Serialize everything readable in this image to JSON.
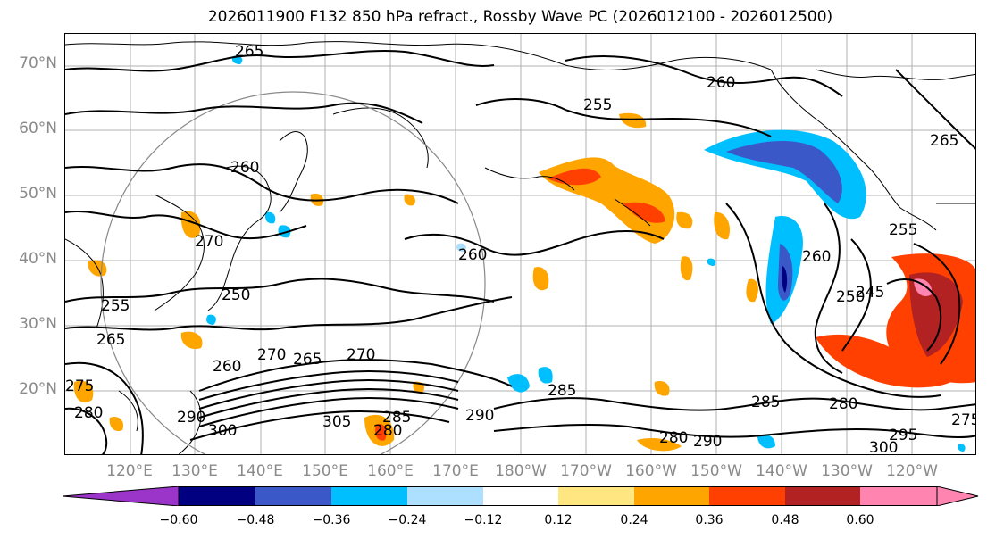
{
  "title": "2026011900 F132 850 hPa refract., Rossby Wave PC (2026012100 - 2026012500)",
  "lat_labels": [
    "70°N",
    "60°N",
    "50°N",
    "40°N",
    "30°N",
    "20°N"
  ],
  "lon_labels": [
    "120°E",
    "130°E",
    "140°E",
    "150°E",
    "160°E",
    "170°E",
    "180°W",
    "170°W",
    "160°W",
    "150°W",
    "140°W",
    "130°W",
    "120°W"
  ],
  "contour_labels": [
    "265",
    "260",
    "255",
    "265",
    "260",
    "255",
    "250",
    "245",
    "250",
    "255",
    "270",
    "265",
    "270",
    "260",
    "270",
    "265",
    "260",
    "275",
    "280",
    "290",
    "300",
    "305",
    "285",
    "280",
    "285",
    "290",
    "285",
    "280",
    "295",
    "300",
    "280",
    "290",
    "275",
    "260"
  ],
  "colorbar": {
    "ticks": [
      "−0.60",
      "−0.48",
      "−0.36",
      "−0.24",
      "−0.12",
      "0.12",
      "0.24",
      "0.36",
      "0.48",
      "0.60"
    ],
    "colors": [
      "#9b34c9",
      "#000080",
      "#3a58c8",
      "#00bfff",
      "#ade0ff",
      "#ffffff",
      "#ffe680",
      "#ffa500",
      "#ff4000",
      "#b22222",
      "#ff85b0"
    ]
  },
  "shading_colors": {
    "neg_deep": "#000080",
    "neg_strong": "#3a58c8",
    "neg_mid": "#00bfff",
    "neg_light": "#ade0ff",
    "pos_light": "#ffe680",
    "pos_mid": "#ffa500",
    "pos_strong": "#ff4000",
    "pos_deep": "#b22222",
    "pos_max": "#ff85b0"
  }
}
